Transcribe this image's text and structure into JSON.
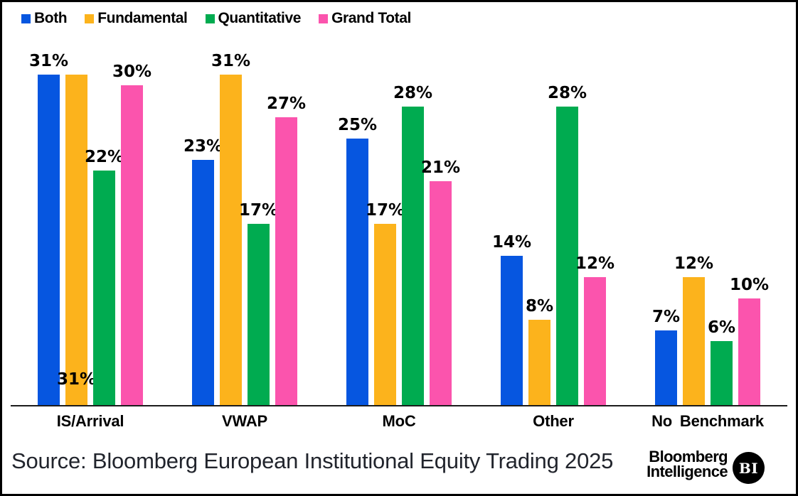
{
  "chart_data": {
    "type": "bar",
    "categories": [
      "IS/Arrival",
      "VWAP",
      "MoC",
      "Other",
      "No Benchmark"
    ],
    "series": [
      {
        "name": "Both",
        "color": "#0656E0",
        "values": [
          31,
          23,
          25,
          14,
          7
        ]
      },
      {
        "name": "Fundamental",
        "color": "#FCB31C",
        "values": [
          31,
          31,
          17,
          8,
          12
        ]
      },
      {
        "name": "Quantitative",
        "color": "#00AB50",
        "values": [
          22,
          17,
          28,
          28,
          6
        ]
      },
      {
        "name": "Grand Total",
        "color": "#FB54AD",
        "values": [
          30,
          27,
          21,
          12,
          10
        ]
      }
    ],
    "value_suffix": "%",
    "ylim": [
      0,
      33
    ],
    "grid": false,
    "legend_position": "top-left",
    "label_overrides": [
      {
        "series": "Fundamental",
        "category": "IS/Arrival",
        "position": "base"
      }
    ]
  },
  "footer": {
    "source": "Source: Bloomberg European Institutional Equity Trading 2025",
    "brand_line1": "Bloomberg",
    "brand_line2": "Intelligence",
    "badge": "BI"
  }
}
